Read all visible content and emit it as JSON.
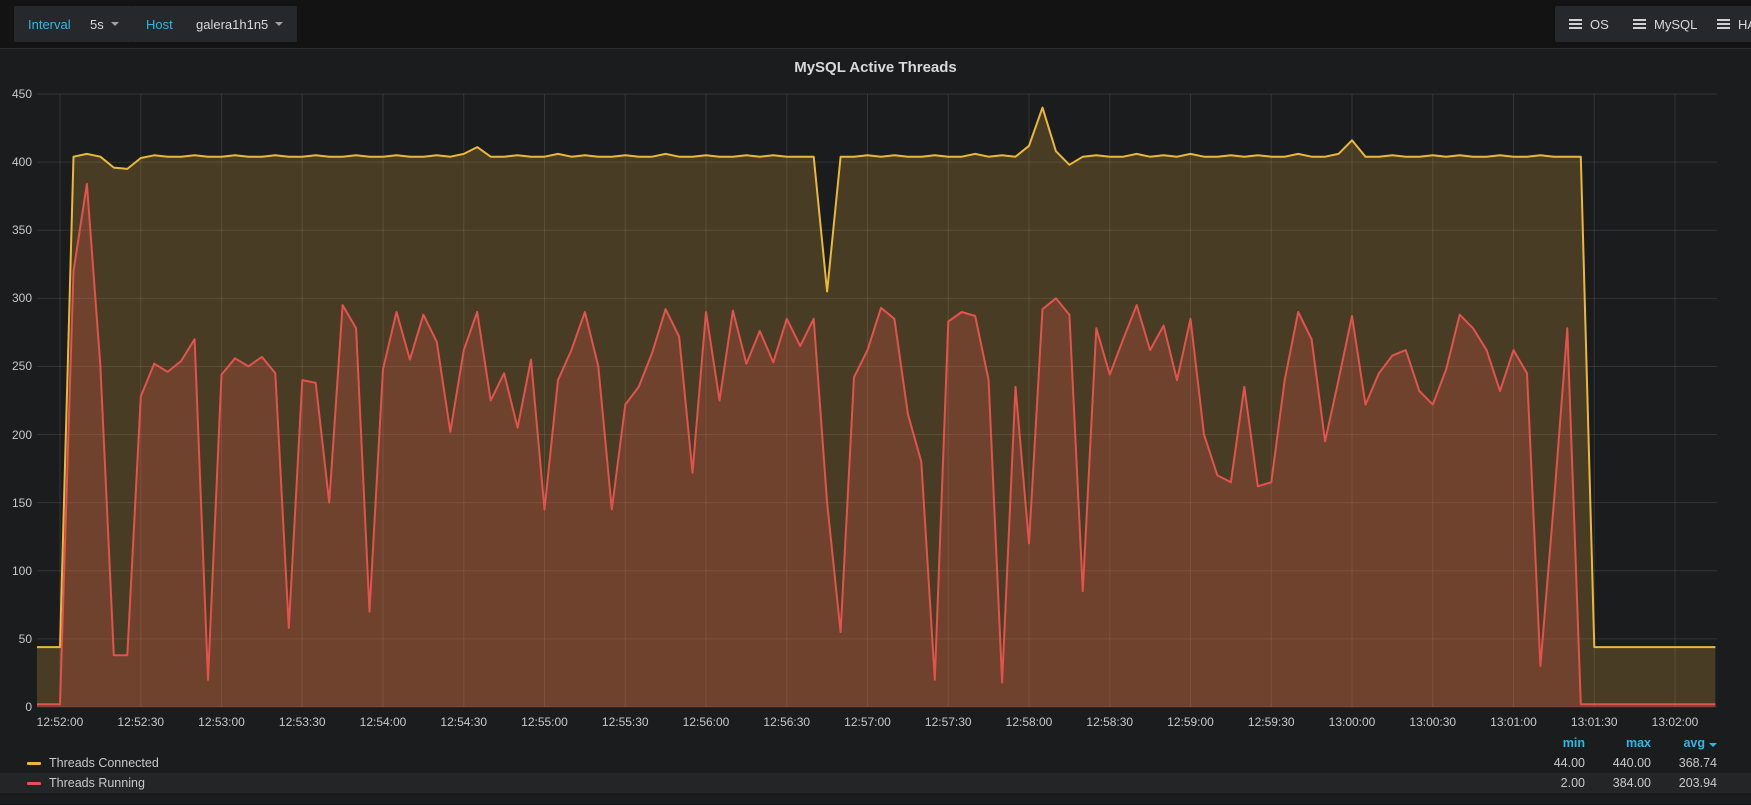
{
  "toolbar": {
    "interval_label": "Interval",
    "interval_value": "5s",
    "host_label": "Host",
    "host_value": "galera1h1n5",
    "menus": {
      "os": "OS",
      "mysql": "MySQL",
      "ha": "HA"
    }
  },
  "panel": {
    "title": "MySQL Active Threads"
  },
  "chart_data": {
    "type": "area",
    "title": "MySQL Active Threads",
    "x_start_time": "12:51:50",
    "x_end_time": "13:02:15",
    "sample_interval_seconds": 5,
    "x_ticks": [
      "12:52:00",
      "12:52:30",
      "12:53:00",
      "12:53:30",
      "12:54:00",
      "12:54:30",
      "12:55:00",
      "12:55:30",
      "12:56:00",
      "12:56:30",
      "12:57:00",
      "12:57:30",
      "12:58:00",
      "12:58:30",
      "12:59:00",
      "12:59:30",
      "13:00:00",
      "13:00:30",
      "13:01:00",
      "13:01:30",
      "13:02:00"
    ],
    "y_ticks": [
      0,
      50,
      100,
      150,
      200,
      250,
      300,
      350,
      400,
      450
    ],
    "ylim": [
      0,
      450
    ],
    "grid": true,
    "legend_position": "bottom",
    "series": [
      {
        "name": "Threads Connected",
        "color": "#EAB839",
        "fill_opacity": 0.22,
        "stats": {
          "min": 44.0,
          "max": 440.0,
          "avg": 368.74
        },
        "values": [
          44,
          44,
          44,
          404,
          406,
          404,
          396,
          395,
          403,
          405,
          404,
          404,
          405,
          404,
          404,
          405,
          404,
          404,
          405,
          404,
          404,
          405,
          404,
          404,
          405,
          404,
          404,
          405,
          404,
          404,
          405,
          404,
          406,
          411,
          404,
          404,
          405,
          404,
          404,
          406,
          404,
          405,
          404,
          404,
          405,
          404,
          404,
          406,
          404,
          404,
          405,
          404,
          404,
          405,
          404,
          405,
          404,
          404,
          404,
          305,
          404,
          404,
          405,
          404,
          405,
          404,
          404,
          405,
          404,
          404,
          406,
          404,
          405,
          404,
          412,
          440,
          408,
          398,
          404,
          405,
          404,
          404,
          406,
          404,
          405,
          404,
          406,
          404,
          404,
          405,
          404,
          405,
          404,
          404,
          406,
          404,
          404,
          406,
          416,
          404,
          404,
          405,
          404,
          404,
          405,
          404,
          405,
          404,
          404,
          405,
          404,
          404,
          405,
          404,
          404,
          404,
          44,
          44,
          44,
          44,
          44,
          44,
          44,
          44,
          44,
          44
        ]
      },
      {
        "name": "Threads Running",
        "color": "#E3524D",
        "fill_opacity": 0.25,
        "stats": {
          "min": 2.0,
          "max": 384.0,
          "avg": 203.94
        },
        "values": [
          2,
          2,
          2,
          320,
          384,
          250,
          38,
          38,
          228,
          252,
          246,
          254,
          270,
          20,
          244,
          256,
          250,
          257,
          245,
          58,
          240,
          238,
          150,
          295,
          278,
          70,
          248,
          290,
          255,
          288,
          268,
          202,
          262,
          290,
          225,
          245,
          205,
          255,
          145,
          240,
          262,
          290,
          250,
          145,
          222,
          235,
          260,
          292,
          272,
          172,
          290,
          225,
          291,
          252,
          276,
          253,
          285,
          265,
          285,
          150,
          55,
          242,
          262,
          293,
          285,
          215,
          180,
          20,
          283,
          290,
          287,
          240,
          18,
          235,
          120,
          292,
          300,
          288,
          85,
          278,
          244,
          270,
          295,
          262,
          280,
          240,
          285,
          200,
          170,
          165,
          235,
          162,
          165,
          240,
          290,
          270,
          195,
          240,
          287,
          222,
          245,
          258,
          262,
          232,
          222,
          248,
          288,
          278,
          262,
          232,
          262,
          245,
          30,
          150,
          278,
          2,
          2,
          2,
          2,
          2,
          2,
          2,
          2,
          2,
          2,
          2
        ]
      }
    ]
  },
  "legend": {
    "headers": {
      "min": "min",
      "max": "max",
      "avg": "avg"
    },
    "rows": [
      {
        "label": "Threads Connected",
        "color": "#EAB839",
        "min": "44.00",
        "max": "440.00",
        "avg": "368.74"
      },
      {
        "label": "Threads Running",
        "color": "#E3524D",
        "min": "2.00",
        "max": "384.00",
        "avg": "203.94"
      }
    ]
  },
  "colors": {
    "page_bg": "#131314",
    "panel_bg": "#1b1c1e",
    "accent_blue": "#33b5e5",
    "grid": "rgba(255,255,255,0.10)",
    "tick_text": "#c7c8ca"
  }
}
